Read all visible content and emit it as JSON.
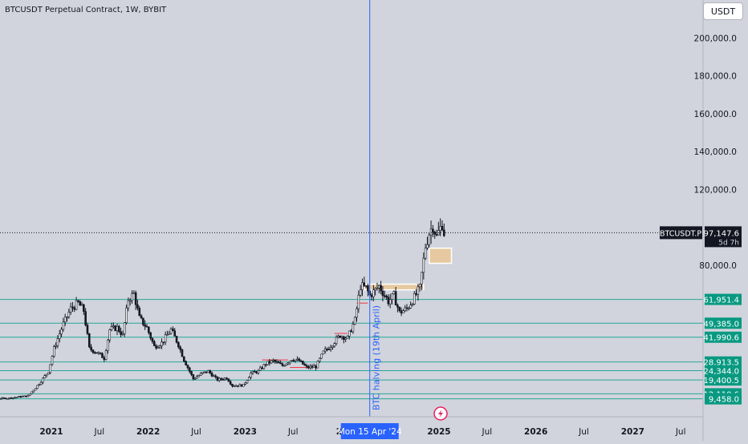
{
  "header": {
    "symbol_title": "BTCUSDT Perpetual Contract, 1W, BYBIT",
    "currency_label": "USDT"
  },
  "colors": {
    "background": "#d1d4dc",
    "candle": "#131722",
    "level_line": "#26a69a",
    "level_label_bg": "#089981",
    "halving_line": "#2962ff",
    "zone_fill": "#e6c9a0",
    "resistance_line": "#f23645"
  },
  "chart_data": {
    "type": "candlestick",
    "ylim": [
      0,
      220000
    ],
    "y_ticks": [
      {
        "value": 80000,
        "label": "80,000.0"
      },
      {
        "value": 120000,
        "label": "120,000.0"
      },
      {
        "value": 140000,
        "label": "140,000.0"
      },
      {
        "value": 160000,
        "label": "160,000.0"
      },
      {
        "value": 180000,
        "label": "180,000.0"
      },
      {
        "value": 200000,
        "label": "200,000.0"
      }
    ],
    "x_ticks": [
      {
        "date": "2021-01-01",
        "label": "2021"
      },
      {
        "date": "2021-07-01",
        "label": "Jul"
      },
      {
        "date": "2022-01-01",
        "label": "2022"
      },
      {
        "date": "2022-07-01",
        "label": "Jul"
      },
      {
        "date": "2023-01-01",
        "label": "2023"
      },
      {
        "date": "2023-07-01",
        "label": "Jul"
      },
      {
        "date": "2024-01-01",
        "label": "20"
      },
      {
        "date": "2025-01-01",
        "label": "2025"
      },
      {
        "date": "2025-07-01",
        "label": "Jul"
      },
      {
        "date": "2026-01-01",
        "label": "2026"
      },
      {
        "date": "2026-07-01",
        "label": "Jul"
      },
      {
        "date": "2027-01-01",
        "label": "2027"
      },
      {
        "date": "2027-07-01",
        "label": "Jul"
      }
    ],
    "price_series": [
      [
        "2020-05-18",
        9400
      ],
      [
        "2020-07-20",
        9800
      ],
      [
        "2020-10-05",
        11000
      ],
      [
        "2020-11-16",
        17500
      ],
      [
        "2020-12-21",
        24000
      ],
      [
        "2021-01-11",
        36000
      ],
      [
        "2021-02-15",
        49000
      ],
      [
        "2021-03-15",
        57000
      ],
      [
        "2021-04-12",
        60000
      ],
      [
        "2021-05-03",
        56000
      ],
      [
        "2021-05-24",
        36000
      ],
      [
        "2021-06-21",
        34000
      ],
      [
        "2021-07-19",
        31000
      ],
      [
        "2021-08-09",
        46000
      ],
      [
        "2021-09-06",
        47000
      ],
      [
        "2021-09-27",
        43000
      ],
      [
        "2021-10-18",
        62000
      ],
      [
        "2021-11-08",
        65000
      ],
      [
        "2021-11-29",
        52000
      ],
      [
        "2021-12-27",
        47000
      ],
      [
        "2022-01-24",
        37000
      ],
      [
        "2022-02-21",
        39000
      ],
      [
        "2022-03-28",
        46000
      ],
      [
        "2022-04-25",
        38000
      ],
      [
        "2022-05-16",
        30000
      ],
      [
        "2022-06-20",
        20000
      ],
      [
        "2022-07-25",
        23000
      ],
      [
        "2022-08-15",
        24000
      ],
      [
        "2022-09-19",
        19500
      ],
      [
        "2022-10-24",
        20500
      ],
      [
        "2022-11-14",
        16500
      ],
      [
        "2022-12-26",
        16600
      ],
      [
        "2023-01-23",
        23000
      ],
      [
        "2023-02-20",
        24000
      ],
      [
        "2023-03-20",
        28000
      ],
      [
        "2023-04-17",
        29500
      ],
      [
        "2023-05-22",
        27000
      ],
      [
        "2023-06-26",
        30500
      ],
      [
        "2023-07-24",
        29500
      ],
      [
        "2023-08-21",
        26000
      ],
      [
        "2023-09-25",
        26500
      ],
      [
        "2023-10-23",
        34000
      ],
      [
        "2023-11-20",
        37500
      ],
      [
        "2023-12-25",
        43000
      ],
      [
        "2024-01-22",
        41500
      ],
      [
        "2024-02-19",
        51000
      ],
      [
        "2024-03-11",
        69000
      ],
      [
        "2024-04-01",
        68000
      ],
      [
        "2024-04-15",
        64000
      ],
      [
        "2024-05-20",
        69000
      ],
      [
        "2024-06-24",
        61000
      ],
      [
        "2024-07-15",
        64000
      ],
      [
        "2024-08-05",
        55000
      ],
      [
        "2024-09-02",
        57000
      ],
      [
        "2024-09-30",
        63000
      ],
      [
        "2024-10-21",
        68000
      ],
      [
        "2024-11-11",
        90000
      ],
      [
        "2024-11-25",
        97000
      ],
      [
        "2024-12-09",
        101000
      ],
      [
        "2024-12-23",
        95000
      ],
      [
        "2025-01-13",
        102000
      ],
      [
        "2025-01-20",
        97147.6
      ]
    ],
    "support_levels": [
      {
        "value": 61951.4,
        "label": "61,951.4"
      },
      {
        "value": 49385.0,
        "label": "49,385.0"
      },
      {
        "value": 41990.6,
        "label": "41,990.6"
      },
      {
        "value": 28913.5,
        "label": "28,913.5"
      },
      {
        "value": 24344.0,
        "label": "24,344.0"
      },
      {
        "value": 19400.5,
        "label": "19,400.5"
      },
      {
        "value": 12110.6,
        "label": "12,110.6"
      },
      {
        "value": 9458.0,
        "label": "9,458.0"
      }
    ],
    "current_price": {
      "symbol": "BTCUSDT.P",
      "value": 97147.6,
      "label": "97,147.6",
      "countdown": "5d 7h"
    },
    "halving": {
      "date": "2024-04-15",
      "label": "BTC halving (19th April)",
      "crosshair_label": "Mon 15 Apr '24"
    },
    "zones": [
      {
        "from": "2024-03-25",
        "to": "2024-11-04",
        "low": 67000,
        "high": 70000
      },
      {
        "from": "2024-11-25",
        "to": "2025-02-17",
        "low": 81000,
        "high": 89000
      }
    ],
    "resistance_marks": [
      {
        "from": "2023-03-06",
        "to": "2023-06-12",
        "value": 30000
      },
      {
        "from": "2023-06-19",
        "to": "2023-09-11",
        "value": 26000
      },
      {
        "from": "2023-12-04",
        "to": "2024-01-22",
        "value": 44000
      },
      {
        "from": "2024-02-26",
        "to": "2024-04-08",
        "value": 60000
      }
    ]
  }
}
